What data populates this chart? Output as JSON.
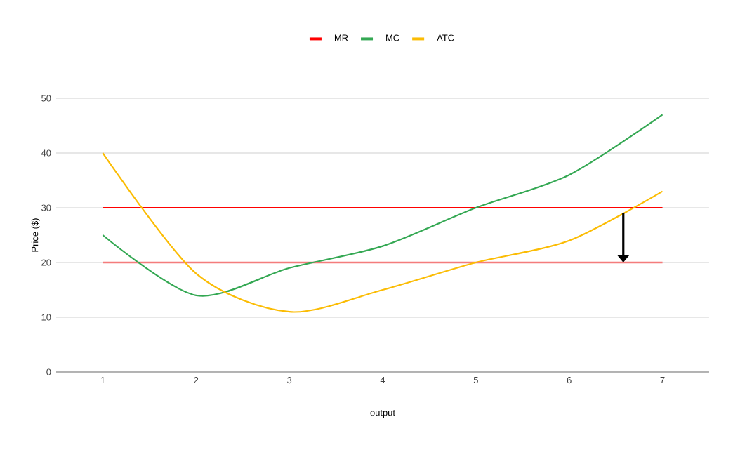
{
  "chart_data": {
    "type": "line",
    "xlabel": "output",
    "ylabel": "Price ($)",
    "categories": [
      "1",
      "2",
      "3",
      "4",
      "5",
      "6",
      "7"
    ],
    "series": [
      {
        "name": "MR",
        "color": "#ff0000",
        "values": [
          30,
          30,
          30,
          30,
          30,
          30,
          30
        ]
      },
      {
        "name": "MC",
        "color": "#34a853",
        "values": [
          25,
          14,
          19,
          23,
          30,
          36,
          47
        ]
      },
      {
        "name": "ATC",
        "color": "#fbbc04",
        "values": [
          40,
          18,
          11,
          15,
          20,
          24,
          33
        ]
      }
    ],
    "ref_lines": [
      {
        "axis": "y",
        "value": 20,
        "color": "#f47c7c"
      }
    ],
    "ylim": [
      0,
      50
    ],
    "yticks": [
      0,
      10,
      20,
      30,
      40,
      50
    ],
    "grid": "y",
    "legend": "top",
    "line_style": "solid",
    "marker": "none"
  }
}
